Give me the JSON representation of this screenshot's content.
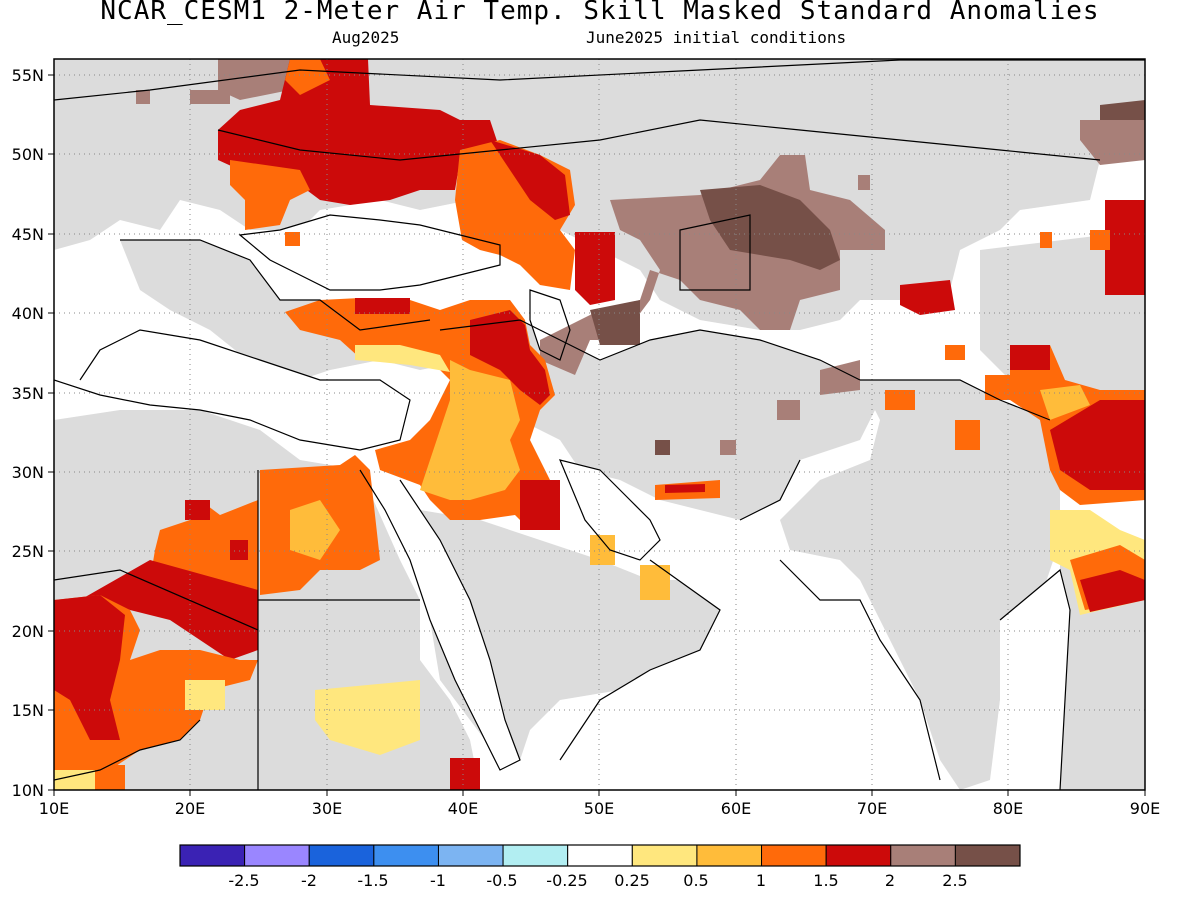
{
  "header": {
    "title": "NCAR_CESM1 2-Meter Air Temp. Skill Masked Standard Anomalies",
    "valid_month": "Aug2025",
    "init_conditions": "June2025 initial conditions"
  },
  "map": {
    "lon_range": [
      10,
      90
    ],
    "lat_range": [
      10,
      56
    ],
    "lon_ticks": [
      "10E",
      "20E",
      "30E",
      "40E",
      "50E",
      "60E",
      "70E",
      "80E",
      "90E"
    ],
    "lat_ticks": [
      "10N",
      "15N",
      "20N",
      "25N",
      "30N",
      "35N",
      "40N",
      "45N",
      "50N",
      "55N"
    ],
    "land_masked_color": "#dcdcdc",
    "ocean_color": "#ffffff"
  },
  "colorbar": {
    "colors": [
      "#3a22b4",
      "#9a86ff",
      "#1a63dc",
      "#3d8ff0",
      "#7cb4f2",
      "#b2eef2",
      "#ffffff",
      "#ffe77e",
      "#ffbc3a",
      "#ff6a0a",
      "#cc0a0a",
      "#a87f78",
      "#765048"
    ],
    "labels": [
      "-2.5",
      "-2",
      "-1.5",
      "-1",
      "-0.5",
      "-0.25",
      "0.25",
      "0.5",
      "1",
      "1.5",
      "2",
      "2.5"
    ]
  }
}
